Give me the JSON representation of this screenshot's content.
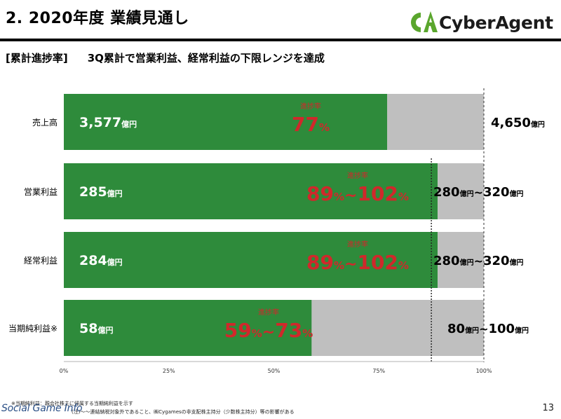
{
  "header": {
    "title": "2. 2020年度 業績見通し",
    "brand": "CyberAgent",
    "brand_mark": "CA",
    "brand_color": "#5aa62d"
  },
  "subtitle": {
    "bracket": "[累計進捗率]",
    "text": "3Q累計で営業利益、経常利益の下限レンジを達成"
  },
  "chart_data": {
    "type": "bar",
    "orientation": "horizontal",
    "stacked": true,
    "xlim": [
      0,
      100
    ],
    "x_ticks": [
      "0%",
      "25%",
      "50%",
      "75%",
      "100%"
    ],
    "grid": false,
    "categories": [
      "売上高",
      "営業利益",
      "経常利益",
      "当期純利益※"
    ],
    "series": [
      {
        "color": "#2e8b3b",
        "values": [
          77,
          89,
          89,
          59
        ]
      },
      {
        "color": "#bfbfbf",
        "values": [
          23,
          11,
          11,
          41
        ]
      }
    ],
    "actual_labels": [
      {
        "value": "3,577",
        "unit": "億円"
      },
      {
        "value": "285",
        "unit": "億円"
      },
      {
        "value": "284",
        "unit": "億円"
      },
      {
        "value": "58",
        "unit": "億円"
      }
    ],
    "progress_caption": "進捗率",
    "progress_labels": [
      {
        "low": "77",
        "high": "",
        "low_unit": "%",
        "high_unit": "",
        "sep": ""
      },
      {
        "low": "89",
        "high": "102",
        "low_unit": "%",
        "high_unit": "%",
        "sep": "~"
      },
      {
        "low": "89",
        "high": "102",
        "low_unit": "%",
        "high_unit": "%",
        "sep": "~"
      },
      {
        "low": "59",
        "high": "73",
        "low_unit": "%",
        "high_unit": "%",
        "sep": "~"
      }
    ],
    "forecast_labels": [
      {
        "low": "",
        "low_unit": "",
        "sep": "",
        "high": "4,650",
        "high_unit": "億円"
      },
      {
        "low": "280",
        "low_unit": "億円",
        "sep": "~",
        "high": "320",
        "high_unit": "億円"
      },
      {
        "low": "280",
        "low_unit": "億円",
        "sep": "~",
        "high": "320",
        "high_unit": "億円"
      },
      {
        "low": "80",
        "low_unit": "億円",
        "sep": "~",
        "high": "100",
        "high_unit": "億円"
      }
    ],
    "lower_range_line_x": 87.5,
    "accent_color": "#d0282b"
  },
  "footnotes": [
    "※当期純利益：親会社株主に帰属する当期純利益を示す",
    "(注)〜〜連結納税対象外であること、㈱Cygamesの非支配株主持分（少数株主持分）等の影響がある"
  ],
  "page_number": "13",
  "watermark": "Social Game Info"
}
